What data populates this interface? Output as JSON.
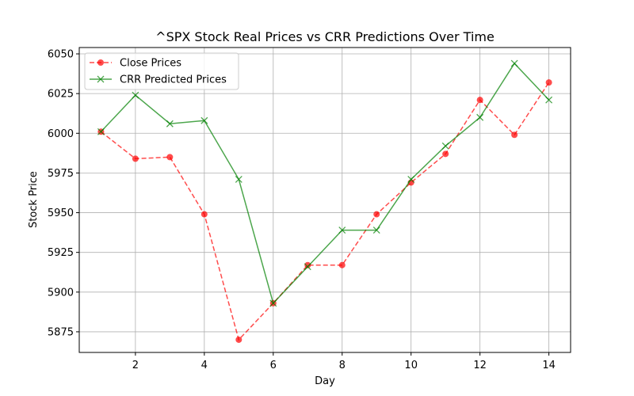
{
  "chart_data": {
    "type": "line",
    "title": "^SPX Stock Real Prices vs CRR Predictions Over Time",
    "xlabel": "Day",
    "ylabel": "Stock Price",
    "xlim": [
      0.37,
      14.63
    ],
    "ylim": [
      5862,
      6054
    ],
    "xticks": [
      2,
      4,
      6,
      8,
      10,
      12,
      14
    ],
    "yticks": [
      5875,
      5900,
      5925,
      5950,
      5975,
      6000,
      6025,
      6050
    ],
    "grid": true,
    "legend_position": "top-left",
    "x": [
      1,
      2,
      3,
      4,
      5,
      6,
      7,
      8,
      9,
      10,
      11,
      12,
      13,
      14
    ],
    "series": [
      {
        "name": "Close Prices",
        "color": "#ff0000",
        "style": "dashed",
        "marker": "circle",
        "values": [
          6001,
          5984,
          5985,
          5949,
          5870,
          5893,
          5917,
          5917,
          5949,
          5969,
          5987,
          6021,
          5999,
          6032
        ]
      },
      {
        "name": "CRR Predicted Prices",
        "color": "#008000",
        "style": "solid",
        "marker": "x",
        "values": [
          6001,
          6024,
          6006,
          6008,
          5971,
          5893,
          5916,
          5939,
          5939,
          5971,
          5992,
          6010,
          6044,
          6021
        ]
      }
    ]
  }
}
